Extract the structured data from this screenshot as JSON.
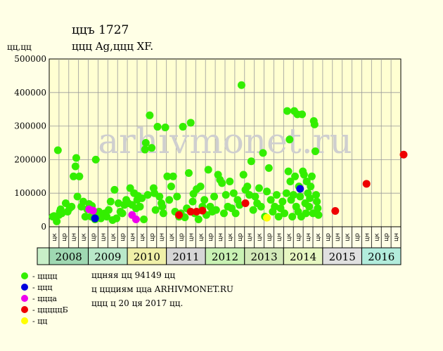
{
  "chart_data": {
    "type": "scatter",
    "title": "ццъ 1727",
    "subtitle": "ццц Ag,ццц XF.",
    "ylabel": "цц,цц",
    "ylim": [
      0,
      500000
    ],
    "yticks": [
      "0",
      "100000",
      "200000",
      "300000",
      "400000",
      "500000"
    ],
    "years": [
      "2008",
      "2009",
      "2010",
      "2011",
      "2012",
      "2013",
      "2014",
      "2015",
      "2016"
    ],
    "year_colors": [
      "#9fd8b2",
      "#b9e8c9",
      "#f0f0a8",
      "#d6d6d6",
      "#c9f2b4",
      "#d3e9b9",
      "#e7f7c2",
      "#e0e0e0",
      "#b2ecdc"
    ],
    "half_labels": [
      "цк",
      "цр",
      "цн",
      "цк",
      "цр",
      "цн",
      "цк",
      "цр",
      "цн",
      "цк",
      "цр",
      "цн",
      "цк",
      "цр",
      "цн",
      "цк",
      "цр",
      "цн",
      "цк",
      "цр",
      "цн",
      "цк",
      "цр",
      "цн",
      "цк",
      "цр",
      "цн",
      "цк",
      "цр",
      "цн",
      "цк",
      "цр",
      "цн",
      "цк",
      "цр",
      "цн"
    ],
    "series": [
      {
        "name": "цццц",
        "color": "#33ee00",
        "points": [
          [
            0.02,
            30000
          ],
          [
            0.05,
            32000
          ],
          [
            0.08,
            28000
          ],
          [
            0.12,
            16000
          ],
          [
            0.15,
            228000
          ],
          [
            0.18,
            35000
          ],
          [
            0.2,
            45000
          ],
          [
            0.22,
            52000
          ],
          [
            0.25,
            40000
          ],
          [
            0.35,
            70000
          ],
          [
            0.4,
            45000
          ],
          [
            0.45,
            55000
          ],
          [
            0.5,
            60000
          ],
          [
            0.55,
            150000
          ],
          [
            0.6,
            180000
          ],
          [
            0.62,
            205000
          ],
          [
            0.65,
            90000
          ],
          [
            0.7,
            150000
          ],
          [
            0.75,
            60000
          ],
          [
            0.8,
            75000
          ],
          [
            0.85,
            30000
          ],
          [
            0.9,
            52000
          ],
          [
            0.95,
            68000
          ],
          [
            1.0,
            30000
          ],
          [
            1.02,
            62000
          ],
          [
            1.05,
            35000
          ],
          [
            1.1,
            22000
          ],
          [
            1.12,
            200000
          ],
          [
            1.15,
            40000
          ],
          [
            1.2,
            45000
          ],
          [
            1.25,
            25000
          ],
          [
            1.3,
            32000
          ],
          [
            1.35,
            40000
          ],
          [
            1.4,
            30000
          ],
          [
            1.45,
            50000
          ],
          [
            1.5,
            75000
          ],
          [
            1.55,
            20000
          ],
          [
            1.6,
            110000
          ],
          [
            1.65,
            25000
          ],
          [
            1.7,
            70000
          ],
          [
            1.75,
            45000
          ],
          [
            1.8,
            40000
          ],
          [
            1.85,
            65000
          ],
          [
            1.9,
            80000
          ],
          [
            1.95,
            70000
          ],
          [
            2.0,
            115000
          ],
          [
            2.05,
            65000
          ],
          [
            2.1,
            100000
          ],
          [
            2.15,
            55000
          ],
          [
            2.18,
            80000
          ],
          [
            2.2,
            92000
          ],
          [
            2.25,
            60000
          ],
          [
            2.3,
            85000
          ],
          [
            2.35,
            22000
          ],
          [
            2.38,
            230000
          ],
          [
            2.4,
            250000
          ],
          [
            2.45,
            95000
          ],
          [
            2.5,
            332000
          ],
          [
            2.55,
            235000
          ],
          [
            2.6,
            115000
          ],
          [
            2.62,
            100000
          ],
          [
            2.65,
            50000
          ],
          [
            2.7,
            298000
          ],
          [
            2.75,
            90000
          ],
          [
            2.8,
            70000
          ],
          [
            2.82,
            60000
          ],
          [
            2.85,
            40000
          ],
          [
            2.9,
            296000
          ],
          [
            2.95,
            150000
          ],
          [
            3.0,
            80000
          ],
          [
            3.05,
            120000
          ],
          [
            3.1,
            150000
          ],
          [
            3.15,
            45000
          ],
          [
            3.2,
            90000
          ],
          [
            3.25,
            30000
          ],
          [
            3.3,
            40000
          ],
          [
            3.35,
            298000
          ],
          [
            3.4,
            28000
          ],
          [
            3.45,
            55000
          ],
          [
            3.5,
            160000
          ],
          [
            3.55,
            310000
          ],
          [
            3.6,
            75000
          ],
          [
            3.62,
            98000
          ],
          [
            3.65,
            40000
          ],
          [
            3.7,
            112000
          ],
          [
            3.75,
            22000
          ],
          [
            3.8,
            120000
          ],
          [
            3.85,
            60000
          ],
          [
            3.9,
            80000
          ],
          [
            3.95,
            35000
          ],
          [
            4.0,
            170000
          ],
          [
            4.05,
            60000
          ],
          [
            4.1,
            45000
          ],
          [
            4.15,
            90000
          ],
          [
            4.2,
            50000
          ],
          [
            4.25,
            155000
          ],
          [
            4.3,
            140000
          ],
          [
            4.35,
            130000
          ],
          [
            4.4,
            40000
          ],
          [
            4.45,
            95000
          ],
          [
            4.5,
            60000
          ],
          [
            4.55,
            135000
          ],
          [
            4.6,
            55000
          ],
          [
            4.65,
            100000
          ],
          [
            4.7,
            40000
          ],
          [
            4.75,
            80000
          ],
          [
            4.8,
            65000
          ],
          [
            4.85,
            422000
          ],
          [
            4.9,
            155000
          ],
          [
            4.95,
            110000
          ],
          [
            5.0,
            120000
          ],
          [
            5.05,
            95000
          ],
          [
            5.1,
            195000
          ],
          [
            5.15,
            50000
          ],
          [
            5.2,
            90000
          ],
          [
            5.25,
            70000
          ],
          [
            5.3,
            115000
          ],
          [
            5.35,
            60000
          ],
          [
            5.4,
            220000
          ],
          [
            5.45,
            30000
          ],
          [
            5.5,
            105000
          ],
          [
            5.55,
            175000
          ],
          [
            5.6,
            80000
          ],
          [
            5.65,
            45000
          ],
          [
            5.7,
            60000
          ],
          [
            5.75,
            95000
          ],
          [
            5.8,
            30000
          ],
          [
            5.85,
            55000
          ],
          [
            5.9,
            75000
          ],
          [
            5.95,
            40000
          ],
          [
            6.0,
            100000
          ],
          [
            6.02,
            345000
          ],
          [
            6.05,
            165000
          ],
          [
            6.08,
            260000
          ],
          [
            6.1,
            135000
          ],
          [
            6.12,
            80000
          ],
          [
            6.15,
            30000
          ],
          [
            6.18,
            95000
          ],
          [
            6.2,
            345000
          ],
          [
            6.22,
            150000
          ],
          [
            6.25,
            60000
          ],
          [
            6.28,
            335000
          ],
          [
            6.3,
            45000
          ],
          [
            6.32,
            120000
          ],
          [
            6.35,
            90000
          ],
          [
            6.38,
            30000
          ],
          [
            6.4,
            335000
          ],
          [
            6.42,
            165000
          ],
          [
            6.45,
            155000
          ],
          [
            6.48,
            70000
          ],
          [
            6.5,
            40000
          ],
          [
            6.52,
            135000
          ],
          [
            6.55,
            100000
          ],
          [
            6.58,
            60000
          ],
          [
            6.6,
            85000
          ],
          [
            6.62,
            120000
          ],
          [
            6.65,
            150000
          ],
          [
            6.68,
            40000
          ],
          [
            6.7,
            315000
          ],
          [
            6.72,
            305000
          ],
          [
            6.74,
            225000
          ],
          [
            6.76,
            95000
          ],
          [
            6.78,
            75000
          ],
          [
            6.8,
            55000
          ],
          [
            6.82,
            35000
          ]
        ]
      },
      {
        "name": "ццц",
        "color": "#0000dd",
        "points": [
          [
            1.1,
            25000
          ],
          [
            6.35,
            113000
          ]
        ]
      },
      {
        "name": "цццa",
        "color": "#ee00ee",
        "points": [
          [
            0.95,
            52000
          ],
          [
            1.05,
            48000
          ],
          [
            2.05,
            35000
          ],
          [
            2.15,
            22000
          ]
        ]
      },
      {
        "name": "цццццБ",
        "color": "#ee0000",
        "points": [
          [
            3.25,
            35000
          ],
          [
            3.55,
            45000
          ],
          [
            3.7,
            45000
          ],
          [
            3.85,
            48000
          ],
          [
            4.95,
            70000
          ],
          [
            7.25,
            47000
          ],
          [
            8.05,
            128000
          ],
          [
            9.0,
            215000
          ]
        ]
      },
      {
        "name": "цц",
        "color": "#ffff00",
        "points": [
          [
            5.5,
            27000
          ]
        ]
      }
    ]
  },
  "legend": [
    {
      "label": "- цццц",
      "color": "#33ee00"
    },
    {
      "label": "- ццц",
      "color": "#0000dd"
    },
    {
      "label": "- цццa",
      "color": "#ee00ee"
    },
    {
      "label": "- цццццБ",
      "color": "#ee0000"
    },
    {
      "label": "- цц",
      "color": "#ffff00"
    }
  ],
  "notes": [
    "ццняя цц 94149 цц",
    "ц ццциям ццa ARHIVMONET.RU",
    "ццц ц 20 ця 2017 цц."
  ],
  "watermark": "arhivmonet.ru"
}
